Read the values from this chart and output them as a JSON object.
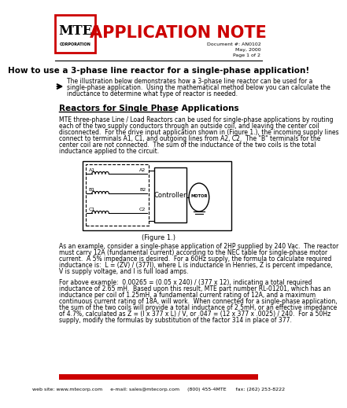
{
  "title": "APPLICATION NOTE",
  "doc_number": "Document #: AN0102",
  "doc_date": "May, 2000",
  "doc_page": "Page 1 of 2",
  "main_title": "How to use a 3-phase line reactor for a single-phase application!",
  "section_title": "Reactors for Single Phase Applications",
  "intro_text": "The illustration below demonstrates how a 3-phase line reactor can be used for a single-phase application.  Using the mathematical method below you can calculate the inductance to determine what type of reactor is needed.",
  "body_text1": "MTE three-phase Line / Load Reactors can be used for single-phase applications by routing each of the two supply conductors through an outside coil, and leaving the center coil disconnected.  For the drive input application shown in (Figure 1.), the incoming supply lines connect to terminals A1, C1, and outgoing lines from A2, C2.  The \"B\" terminals for the center coil are not connected.  The sum of the inductance of the two coils is the total inductance applied to the circuit.",
  "figure_caption": "(Figure 1.)",
  "body_text2": "As an example, consider a single-phase application of 2HP supplied by 240 Vac.  The reactor must carry 12A (fundamental current) according to the NEC table for single-phase motor current.  A 5% impedance is desired.  For a 60Hz supply, the formula to calculate required inductance is:  L = (ZV) / (377I), where L is inductance in Henries, Z is percent impedance, V is supply voltage, and I is full load amps.",
  "body_text3": "For above example:  0.00265 = (0.05 x 240) / (377 x 12), indicating a total required inductance of 2.65 mH.  Based upon this result, MTE part number RL-01201, which has an inductance per coil of 1.25mH, a fundamental current rating of 12A, and a maximum continuous current rating of 18A, will work.  When connected for a single-phase application, the sum of the two coils will provide a total inductance of 2.5mH, or an effective impedance of 4.7%, calculated as Z = (I x 377 x L) / V, or .047 = (12 x 377 x .0025) / 240.  For a 50Hz supply, modify the formulas by substitution of the factor 314 in place of 377.",
  "footer_text": "web site: www.mtecorp.com     e-mail: sales@mtecorp.com     (800) 455-4MTE      fax: (262) 253-8222",
  "bg_color": "#ffffff",
  "header_red": "#cc0000",
  "footer_red": "#cc0000",
  "intro_lines": [
    "The illustration below demonstrates how a 3-phase line reactor can be used for a",
    "single-phase application.  Using the mathematical method below you can calculate the",
    "inductance to determine what type of reactor is needed."
  ],
  "body1_lines": [
    "MTE three-phase Line / Load Reactors can be used for single-phase applications by routing",
    "each of the two supply conductors through an outside coil, and leaving the center coil",
    "disconnected.  For the drive input application shown in (Figure 1.), the incoming supply lines",
    "connect to terminals A1, C1, and outgoing lines from A2, C2.  The \"B\" terminals for the",
    "center coil are not connected.  The sum of the inductance of the two coils is the total",
    "inductance applied to the circuit."
  ],
  "body2_lines": [
    "As an example, consider a single-phase application of 2HP supplied by 240 Vac.  The reactor",
    "must carry 12A (fundamental current) according to the NEC table for single-phase motor",
    "current.  A 5% impedance is desired.  For a 60Hz supply, the formula to calculate required",
    "inductance is:  L = (ZV) / (377I), where L is inductance in Henries, Z is percent impedance,",
    "V is supply voltage, and I is full load amps."
  ],
  "body3_lines": [
    "For above example:  0.00265 = (0.05 x 240) / (377 x 12), indicating a total required",
    "inductance of 2.65 mH.  Based upon this result, MTE part number RL-01201, which has an",
    "inductance per coil of 1.25mH, a fundamental current rating of 12A, and a maximum",
    "continuous current rating of 18A, will work.  When connected for a single-phase application,",
    "the sum of the two coils will provide a total inductance of 2.5mH, or an effective impedance",
    "of 4.7%, calculated as Z = (I x 377 x L) / V, or .047 = (12 x 377 x .0025) / 240.  For a 50Hz",
    "supply, modify the formulas by substitution of the factor 314 in place of 377."
  ],
  "coil_labels_left": [
    "A1",
    "B1",
    "C1"
  ],
  "coil_labels_right": [
    "A2",
    "B2",
    "C2"
  ]
}
